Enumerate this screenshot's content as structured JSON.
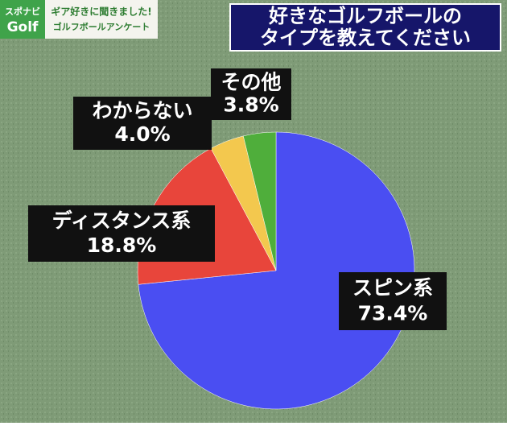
{
  "header": {
    "logo": [
      "スポナビ",
      "Golf"
    ],
    "banner": [
      "ギア好きに聞きました!",
      "ゴルフボールアンケート"
    ]
  },
  "chart_data": {
    "type": "pie",
    "title_lines": [
      "好きなゴルフボールの",
      "タイプを教えてください"
    ],
    "categories": [
      "スピン系",
      "ディスタンス系",
      "わからない",
      "その他"
    ],
    "values": [
      73.4,
      18.8,
      4.0,
      3.8
    ],
    "value_labels": [
      "73.4%",
      "18.8%",
      "4.0%",
      "3.8%"
    ],
    "colors": [
      "#4a4ef2",
      "#e8453b",
      "#f3c84e",
      "#4fae3b"
    ]
  }
}
